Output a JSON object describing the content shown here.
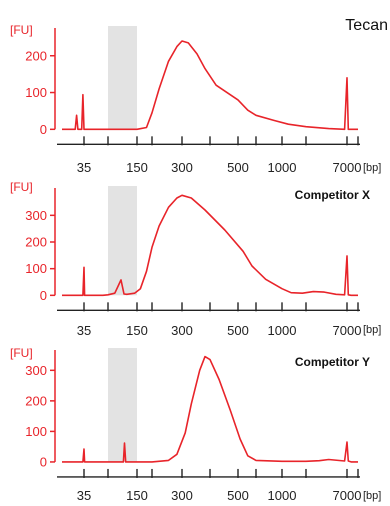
{
  "chart_data": [
    {
      "type": "line",
      "title": "Tecan",
      "y_unit": "[FU]",
      "x_unit": "[bp]",
      "ylim": [
        -10,
        270
      ],
      "y_ticks": [
        "0",
        "100",
        "200"
      ],
      "y_tick_values": [
        0,
        100,
        200
      ],
      "x_tick_labels": [
        "35",
        "150",
        "300",
        "500",
        "1000",
        "7000"
      ],
      "x_axis_ticks": [
        35,
        100,
        150,
        200,
        300,
        400,
        500,
        700,
        1000,
        2000,
        7000,
        10000
      ],
      "shaded_region_bp": [
        100,
        150
      ],
      "series": [
        {
          "color": "#e8242a",
          "x": [
            20,
            28,
            29,
            30,
            31,
            33,
            34,
            35,
            36,
            38,
            60,
            100,
            150,
            180,
            200,
            220,
            250,
            280,
            300,
            320,
            350,
            380,
            420,
            500,
            600,
            700,
            900,
            1200,
            2000,
            4000,
            6500,
            7000,
            7300,
            8000,
            10000
          ],
          "y": [
            0,
            0,
            38,
            0,
            0,
            0,
            94,
            0,
            0,
            0,
            0,
            0,
            0,
            5,
            45,
            110,
            185,
            225,
            240,
            235,
            205,
            165,
            120,
            80,
            52,
            38,
            24,
            14,
            7,
            2,
            0,
            140,
            0,
            0,
            0
          ]
        }
      ]
    },
    {
      "type": "line",
      "title": "Competitor X",
      "y_unit": "[FU]",
      "x_unit": "[bp]",
      "ylim": [
        -10,
        395
      ],
      "y_ticks": [
        "0",
        "100",
        "200",
        "300"
      ],
      "y_tick_values": [
        0,
        100,
        200,
        300
      ],
      "x_tick_labels": [
        "35",
        "150",
        "300",
        "500",
        "1000",
        "7000"
      ],
      "x_axis_ticks": [
        35,
        100,
        150,
        200,
        300,
        400,
        500,
        700,
        1000,
        2000,
        7000,
        10000
      ],
      "shaded_region_bp": [
        100,
        150
      ],
      "series": [
        {
          "color": "#e8242a",
          "x": [
            20,
            34,
            35,
            36,
            80,
            100,
            110,
            120,
            125,
            130,
            145,
            160,
            180,
            200,
            220,
            250,
            280,
            300,
            330,
            380,
            450,
            550,
            650,
            800,
            1000,
            1300,
            1800,
            2500,
            3500,
            5000,
            6500,
            7000,
            7300,
            8000,
            10000
          ],
          "y": [
            0,
            0,
            105,
            0,
            0,
            2,
            8,
            58,
            5,
            4,
            8,
            25,
            90,
            180,
            260,
            330,
            365,
            375,
            365,
            320,
            245,
            165,
            110,
            60,
            25,
            10,
            8,
            14,
            12,
            4,
            2,
            148,
            2,
            0,
            0
          ]
        }
      ]
    },
    {
      "type": "line",
      "title": "Competitor Y",
      "y_unit": "[FU]",
      "x_unit": "[bp]",
      "ylim": [
        -10,
        360
      ],
      "y_ticks": [
        "0",
        "100",
        "200",
        "300"
      ],
      "y_tick_values": [
        0,
        100,
        200,
        300
      ],
      "x_tick_labels": [
        "35",
        "150",
        "300",
        "500",
        "1000",
        "7000"
      ],
      "x_axis_ticks": [
        35,
        100,
        150,
        200,
        300,
        400,
        500,
        700,
        1000,
        2000,
        7000,
        10000
      ],
      "shaded_region_bp": [
        100,
        150
      ],
      "series": [
        {
          "color": "#e8242a",
          "x": [
            20,
            34,
            35,
            36,
            80,
            124,
            126,
            128,
            150,
            200,
            250,
            280,
            310,
            330,
            360,
            380,
            400,
            430,
            470,
            520,
            600,
            700,
            1000,
            2000,
            3000,
            4000,
            6500,
            7000,
            7300,
            8000,
            10000
          ],
          "y": [
            0,
            0,
            42,
            0,
            0,
            0,
            62,
            0,
            0,
            0,
            5,
            25,
            95,
            190,
            300,
            345,
            335,
            270,
            170,
            75,
            20,
            5,
            2,
            2,
            4,
            8,
            3,
            65,
            3,
            0,
            0
          ]
        }
      ]
    }
  ]
}
